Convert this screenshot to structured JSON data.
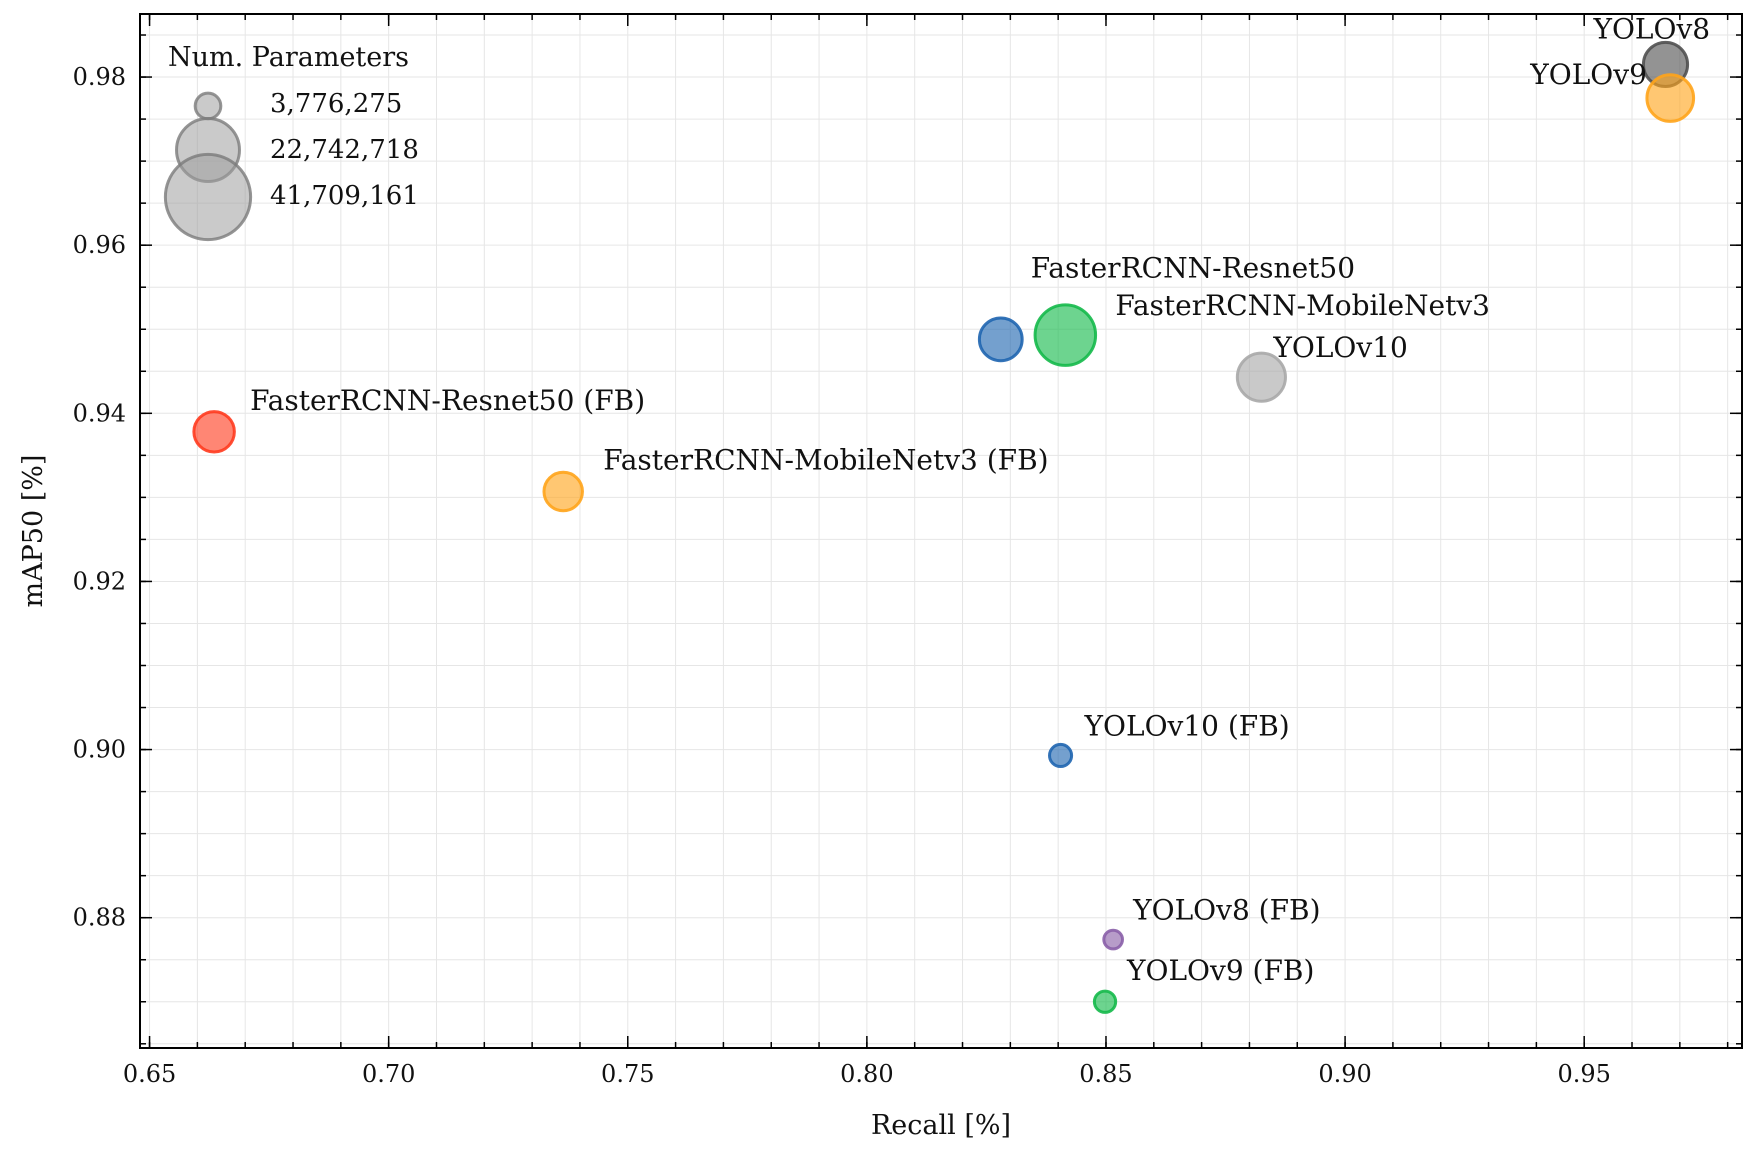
{
  "chart_data": {
    "type": "scatter",
    "title": "",
    "xlabel": "Recall [%]",
    "ylabel": "mAP50 [%]",
    "xlim": [
      0.648,
      0.983
    ],
    "ylim": [
      0.8645,
      0.9875
    ],
    "x_ticks": [
      0.65,
      0.7,
      0.75,
      0.8,
      0.85,
      0.9,
      0.95
    ],
    "x_tick_labels": [
      "0.65",
      "0.70",
      "0.75",
      "0.80",
      "0.85",
      "0.90",
      "0.95"
    ],
    "y_ticks": [
      0.88,
      0.9,
      0.92,
      0.94,
      0.96,
      0.98
    ],
    "y_tick_labels": [
      "0.88",
      "0.90",
      "0.92",
      "0.94",
      "0.96",
      "0.98"
    ],
    "grid": true,
    "size_encoding": "Num. Parameters",
    "legend": {
      "title": "Num. Parameters",
      "placement": "top-left",
      "entries": [
        {
          "label": "3,776,275",
          "params": 3776275
        },
        {
          "label": "22,742,718",
          "params": 22742718
        },
        {
          "label": "41,709,161",
          "params": 41709161
        }
      ],
      "color": "#9e9e9e"
    },
    "points": [
      {
        "label": "YOLOv8",
        "x": 0.967,
        "y": 0.9815,
        "params": 11200000,
        "color": "#505050"
      },
      {
        "label": "YOLOv9",
        "x": 0.968,
        "y": 0.9775,
        "params": 12500000,
        "color": "#ffa41b"
      },
      {
        "label": "FasterRCNN-Resnet50",
        "x": 0.828,
        "y": 0.9488,
        "params": 10500000,
        "color": "#1f65b0"
      },
      {
        "label": "FasterRCNN-MobileNetv3",
        "x": 0.8415,
        "y": 0.9493,
        "params": 21000000,
        "color": "#14b94a"
      },
      {
        "label": "YOLOv10",
        "x": 0.8825,
        "y": 0.9443,
        "params": 13300000,
        "color": "#a8a8a8"
      },
      {
        "label": "FasterRCNN-Resnet50 (FB)",
        "x": 0.6635,
        "y": 0.9378,
        "params": 9400000,
        "color": "#ff3b1f"
      },
      {
        "label": "FasterRCNN-MobileNetv3 (FB)",
        "x": 0.7365,
        "y": 0.9307,
        "params": 8500000,
        "color": "#ffa41b"
      },
      {
        "label": "YOLOv10 (FB)",
        "x": 0.8405,
        "y": 0.8993,
        "params": 2800000,
        "color": "#1f65b0"
      },
      {
        "label": "YOLOv8 (FB)",
        "x": 0.8515,
        "y": 0.8774,
        "params": 2000000,
        "color": "#8a5fa8"
      },
      {
        "label": "YOLOv9 (FB)",
        "x": 0.8498,
        "y": 0.87,
        "params": 2600000,
        "color": "#14b94a"
      }
    ]
  }
}
